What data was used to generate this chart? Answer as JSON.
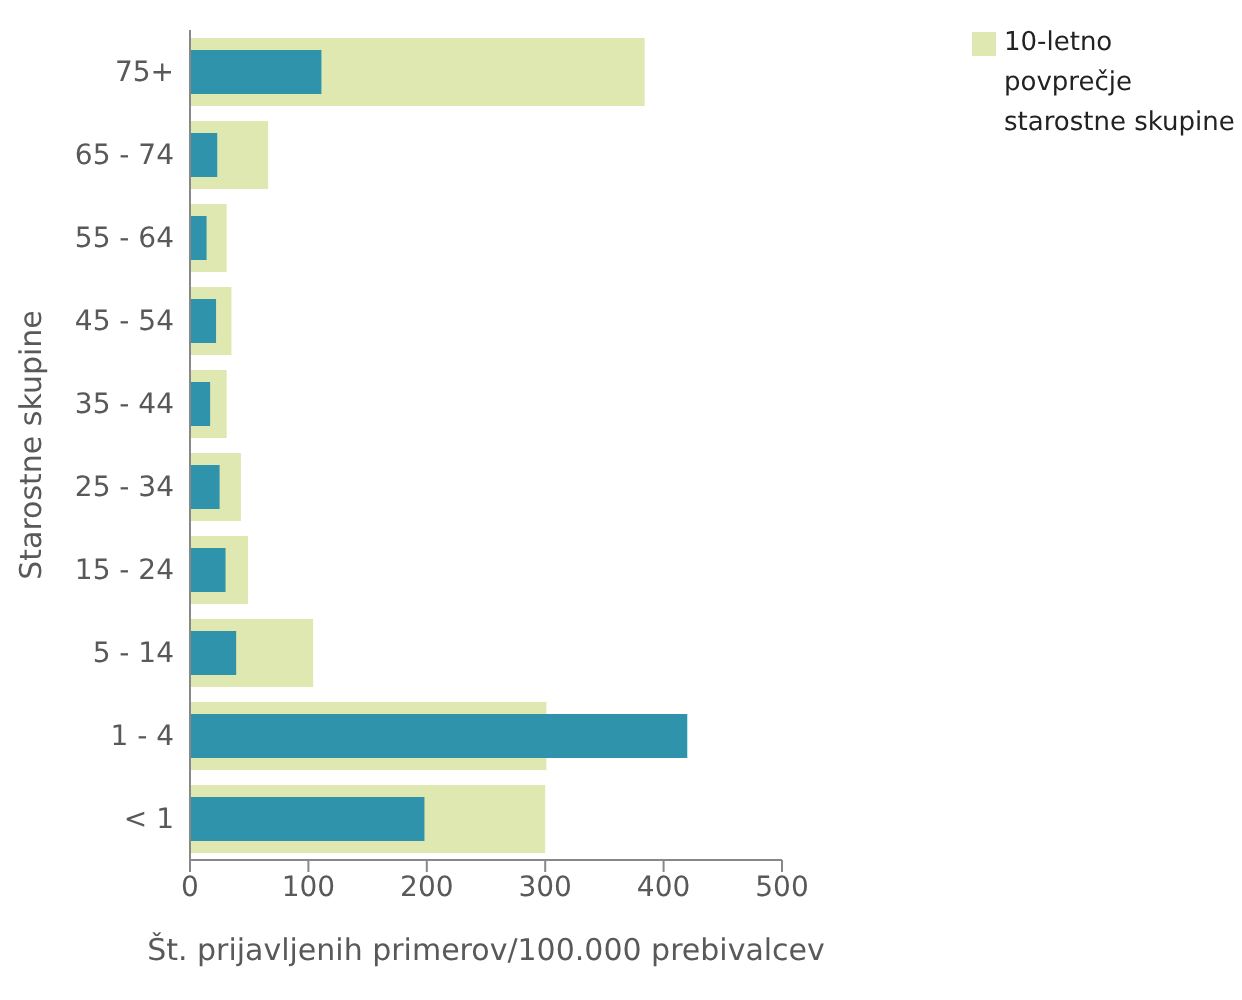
{
  "chart_data": {
    "type": "bar",
    "orientation": "horizontal",
    "xlabel": "Št. prijavljenih primerov/100.000 prebivalcev",
    "ylabel": "Starostne skupine",
    "categories": [
      "75+",
      "65 - 74",
      "55 - 64",
      "45 - 54",
      "35 - 44",
      "25 - 34",
      "15 - 24",
      "5 - 14",
      "1 - 4",
      "< 1"
    ],
    "series": [
      {
        "name": "10-letno povprečje starostne skupine",
        "color": "#dee8b0",
        "values": [
          384,
          66,
          31,
          35,
          31,
          43,
          49,
          104,
          301,
          300
        ]
      },
      {
        "color": "#2e93ab",
        "values": [
          111,
          23,
          14,
          22,
          17,
          25,
          30,
          39,
          420,
          198
        ]
      }
    ],
    "xlim": [
      0,
      500
    ],
    "xticks": [
      0,
      100,
      200,
      300,
      400,
      500
    ],
    "legend": "top right"
  }
}
